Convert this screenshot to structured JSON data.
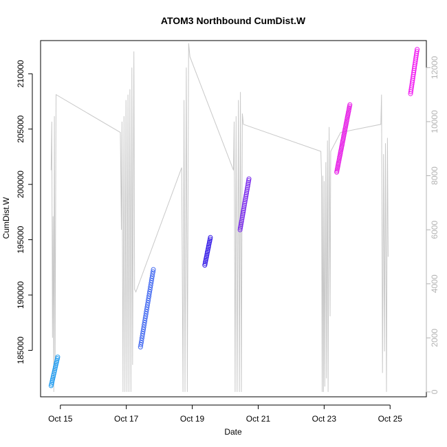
{
  "chart_data": {
    "type": "scatter",
    "title": "ATOM3 Northbound CumDist.W",
    "xlabel": "Date",
    "ylabel": "CumDist.W",
    "x_unit": "days since Oct 14 (date axis)",
    "xlim": [
      0.4,
      12.1
    ],
    "ylim": [
      180800,
      213000
    ],
    "y2lim": [
      -180,
      13000
    ],
    "x_ticks": [
      {
        "value": 1,
        "label": "Oct 15"
      },
      {
        "value": 3,
        "label": "Oct 17"
      },
      {
        "value": 5,
        "label": "Oct 19"
      },
      {
        "value": 7,
        "label": "Oct 21"
      },
      {
        "value": 9,
        "label": "Oct 23"
      },
      {
        "value": 11,
        "label": "Oct 25"
      }
    ],
    "y_ticks": [
      {
        "value": 185000,
        "label": "185000"
      },
      {
        "value": 190000,
        "label": "190000"
      },
      {
        "value": 195000,
        "label": "195000"
      },
      {
        "value": 200000,
        "label": "200000"
      },
      {
        "value": 205000,
        "label": "205000"
      },
      {
        "value": 210000,
        "label": "210000"
      }
    ],
    "y2_ticks": [
      {
        "value": 0,
        "label": "0"
      },
      {
        "value": 2000,
        "label": "2000"
      },
      {
        "value": 4000,
        "label": "4000"
      },
      {
        "value": 6000,
        "label": "6000"
      },
      {
        "value": 8000,
        "label": "8000"
      },
      {
        "value": 10000,
        "label": "10000"
      },
      {
        "value": 12000,
        "label": "12000"
      }
    ],
    "colors": {
      "background_line": "#c8c8c8",
      "right_axis": "#b3b3b3"
    },
    "series": [
      {
        "color": "#1e9bf0",
        "x_start": 0.72,
        "x_end": 0.92,
        "y_start": 181800,
        "y_end": 184400,
        "n": 18
      },
      {
        "color": "#3c64f0",
        "x_start": 3.43,
        "x_end": 3.82,
        "y_start": 185300,
        "y_end": 192300,
        "n": 36
      },
      {
        "color": "#3218e6",
        "x_start": 5.38,
        "x_end": 5.55,
        "y_start": 192700,
        "y_end": 195200,
        "n": 18
      },
      {
        "color": "#7828eb",
        "x_start": 6.45,
        "x_end": 6.72,
        "y_start": 195900,
        "y_end": 200500,
        "n": 30
      },
      {
        "color": "#e61ee6",
        "x_start": 9.38,
        "x_end": 9.78,
        "y_start": 201100,
        "y_end": 207200,
        "n": 46
      },
      {
        "color": "#f014f0",
        "x_start": 11.62,
        "x_end": 11.82,
        "y_start": 208200,
        "y_end": 212200,
        "n": 24
      }
    ],
    "line_series": {
      "axis": "right",
      "color": "#c8c8c8",
      "points": [
        [
          0.72,
          8200
        ],
        [
          0.74,
          10000
        ],
        [
          0.76,
          2000
        ],
        [
          0.78,
          6500
        ],
        [
          0.8,
          0
        ],
        [
          0.82,
          10200
        ],
        [
          0.84,
          800
        ],
        [
          0.87,
          11000
        ],
        [
          2.82,
          9600
        ],
        [
          2.85,
          6000
        ],
        [
          2.87,
          10000
        ],
        [
          2.9,
          0
        ],
        [
          2.93,
          10200
        ],
        [
          2.96,
          0
        ],
        [
          2.99,
          10800
        ],
        [
          3.02,
          0
        ],
        [
          3.05,
          11000
        ],
        [
          3.08,
          0
        ],
        [
          3.11,
          11200
        ],
        [
          3.14,
          0
        ],
        [
          3.17,
          12000
        ],
        [
          3.19,
          1000
        ],
        [
          3.23,
          12600
        ],
        [
          3.25,
          3800
        ],
        [
          3.29,
          3700
        ],
        [
          4.68,
          8300
        ],
        [
          4.72,
          0
        ],
        [
          4.75,
          10800
        ],
        [
          4.78,
          0
        ],
        [
          4.82,
          12000
        ],
        [
          4.85,
          0
        ],
        [
          4.89,
          12900
        ],
        [
          4.93,
          12400
        ],
        [
          6.25,
          8200
        ],
        [
          6.27,
          10000
        ],
        [
          6.3,
          0
        ],
        [
          6.33,
          10200
        ],
        [
          6.36,
          0
        ],
        [
          6.4,
          10800
        ],
        [
          6.43,
          0
        ],
        [
          6.46,
          11100
        ],
        [
          6.49,
          0
        ],
        [
          6.52,
          10300
        ],
        [
          6.55,
          9900
        ],
        [
          8.9,
          8900
        ],
        [
          8.92,
          8000
        ],
        [
          8.94,
          0
        ],
        [
          8.96,
          8000
        ],
        [
          8.98,
          0
        ],
        [
          9.0,
          7800
        ],
        [
          9.02,
          200
        ],
        [
          9.05,
          8500
        ],
        [
          9.07,
          500
        ],
        [
          9.1,
          9300
        ],
        [
          9.12,
          0
        ],
        [
          9.15,
          9800
        ],
        [
          9.18,
          2800
        ],
        [
          9.2,
          8900
        ],
        [
          9.5,
          9600
        ],
        [
          10.72,
          9900
        ],
        [
          10.74,
          11000
        ],
        [
          10.77,
          700
        ],
        [
          10.8,
          8800
        ],
        [
          10.83,
          1500
        ],
        [
          10.86,
          9200
        ],
        [
          10.89,
          0
        ],
        [
          10.92,
          9400
        ],
        [
          10.94,
          5000
        ]
      ]
    }
  }
}
